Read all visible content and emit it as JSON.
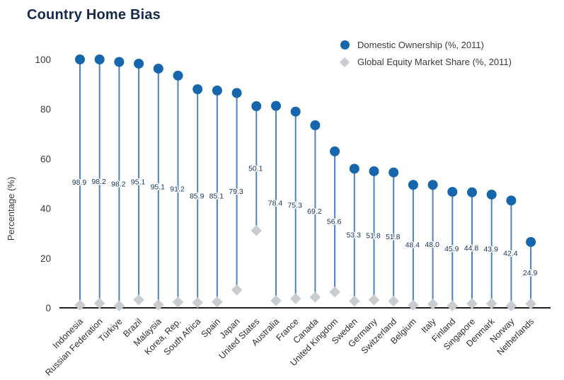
{
  "title": "Country Home Bias",
  "legend": {
    "domestic_label": "Domestic Ownership (%, 2011)",
    "market_share_label": "Global Equity Market Share (%, 2011)"
  },
  "y_axis": {
    "label": "Percentage (%)",
    "ticks": [
      0,
      20,
      40,
      60,
      80,
      100
    ]
  },
  "colors": {
    "dot_blue": "#1566ad",
    "line_blue": "#4d82c0",
    "diamond_gray": "#c9cdd2",
    "title_navy": "#152a4e",
    "bias_label_navy": "#16325c",
    "axis_dark": "#1f1f1f",
    "tick_text": "#3a3a3a"
  },
  "chart_data": {
    "type": "scatter",
    "subtype": "lollipop",
    "grid": false,
    "legend_position": "top-right",
    "ylim": [
      0,
      100
    ],
    "ylabel": "Percentage (%)",
    "title": "Country Home Bias",
    "categories": [
      "Indonesia",
      "Russian Federation",
      "Türkiye",
      "Brazil",
      "Malaysia",
      "Korea, Rep.",
      "South Africa",
      "Spain",
      "Japan",
      "United States",
      "Australia",
      "France",
      "Canada",
      "United Kingdom",
      "Sweden",
      "Germany",
      "Switzerland",
      "Belgium",
      "Italy",
      "Finland",
      "Singapore",
      "Denmark",
      "Norway",
      "Netherlands"
    ],
    "series": [
      {
        "name": "Domestic Ownership (%, 2011)",
        "marker": "circle",
        "values": [
          100,
          100,
          99.0,
          98.3,
          96.3,
          93.5,
          88.0,
          87.5,
          86.5,
          81.2,
          81.3,
          79.0,
          73.5,
          63.0,
          56.0,
          55.0,
          54.5,
          49.5,
          49.5,
          46.7,
          46.5,
          45.6,
          43.2,
          26.5
        ]
      },
      {
        "name": "Global Equity Market Share (%, 2011)",
        "marker": "diamond",
        "values": [
          1.1,
          1.8,
          0.8,
          3.2,
          1.2,
          2.3,
          2.1,
          2.4,
          7.2,
          31.1,
          2.9,
          3.7,
          4.3,
          6.4,
          2.7,
          3.2,
          2.7,
          1.1,
          1.5,
          0.8,
          1.7,
          1.7,
          0.8,
          1.6
        ]
      }
    ],
    "bias_labels": [
      "98.9",
      "98.2",
      "98.2",
      "95.1",
      "95.1",
      "91.2",
      "85.9",
      "85.1",
      "79.3",
      "50.1",
      "78.4",
      "75.3",
      "69.2",
      "56.6",
      "53.3",
      "51.8",
      "51.8",
      "48.4",
      "48.0",
      "45.9",
      "44.8",
      "43.9",
      "42.4",
      "24.9"
    ]
  }
}
